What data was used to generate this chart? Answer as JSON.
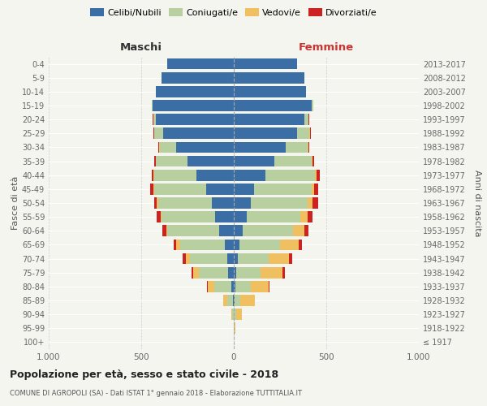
{
  "age_groups": [
    "100+",
    "95-99",
    "90-94",
    "85-89",
    "80-84",
    "75-79",
    "70-74",
    "65-69",
    "60-64",
    "55-59",
    "50-54",
    "45-49",
    "40-44",
    "35-39",
    "30-34",
    "25-29",
    "20-24",
    "15-19",
    "10-14",
    "5-9",
    "0-4"
  ],
  "birth_years": [
    "≤ 1917",
    "1918-1922",
    "1923-1927",
    "1928-1932",
    "1933-1937",
    "1938-1942",
    "1943-1947",
    "1948-1952",
    "1953-1957",
    "1958-1962",
    "1963-1967",
    "1968-1972",
    "1973-1977",
    "1978-1982",
    "1983-1987",
    "1988-1992",
    "1993-1997",
    "1998-2002",
    "2003-2007",
    "2008-2012",
    "2013-2017"
  ],
  "maschi": {
    "celibi": [
      0,
      0,
      0,
      5,
      15,
      30,
      35,
      50,
      80,
      100,
      120,
      150,
      200,
      250,
      310,
      380,
      420,
      440,
      420,
      390,
      360
    ],
    "coniugati": [
      0,
      2,
      8,
      30,
      90,
      160,
      200,
      240,
      280,
      290,
      290,
      280,
      230,
      170,
      90,
      50,
      15,
      5,
      0,
      0,
      0
    ],
    "vedovi": [
      0,
      0,
      5,
      20,
      35,
      30,
      25,
      20,
      5,
      5,
      5,
      5,
      5,
      3,
      2,
      0,
      0,
      0,
      0,
      0,
      0
    ],
    "divorziati": [
      0,
      0,
      0,
      0,
      5,
      10,
      15,
      15,
      20,
      20,
      15,
      15,
      10,
      5,
      5,
      3,
      2,
      0,
      0,
      0,
      0
    ]
  },
  "femmine": {
    "nubili": [
      0,
      0,
      2,
      5,
      10,
      15,
      20,
      30,
      50,
      70,
      90,
      110,
      170,
      220,
      280,
      340,
      380,
      420,
      390,
      380,
      340
    ],
    "coniugate": [
      0,
      3,
      10,
      30,
      80,
      130,
      170,
      220,
      270,
      290,
      310,
      310,
      270,
      200,
      120,
      70,
      25,
      10,
      0,
      0,
      0
    ],
    "vedove": [
      0,
      5,
      30,
      80,
      100,
      120,
      110,
      100,
      60,
      40,
      25,
      15,
      8,
      5,
      3,
      2,
      0,
      0,
      0,
      0,
      0
    ],
    "divorziate": [
      0,
      0,
      0,
      0,
      5,
      10,
      15,
      20,
      25,
      25,
      30,
      20,
      15,
      8,
      5,
      3,
      2,
      0,
      0,
      0,
      0
    ]
  },
  "colors": {
    "celibi_nubili": "#3a6ea5",
    "coniugati_e": "#b8cfa0",
    "vedovi_e": "#f0c060",
    "divorziati_e": "#cc2222"
  },
  "title": "Popolazione per età, sesso e stato civile - 2018",
  "subtitle": "COMUNE DI AGROPOLI (SA) - Dati ISTAT 1° gennaio 2018 - Elaborazione TUTTITALIA.IT",
  "xlabel_left": "Maschi",
  "xlabel_right": "Femmine",
  "ylabel_left": "Fasce di età",
  "ylabel_right": "Anni di nascita",
  "xlim": 1000,
  "legend_labels": [
    "Celibi/Nubili",
    "Coniugati/e",
    "Vedovi/e",
    "Divorziati/e"
  ],
  "bg_color": "#f5f5f0",
  "bar_height": 0.8
}
